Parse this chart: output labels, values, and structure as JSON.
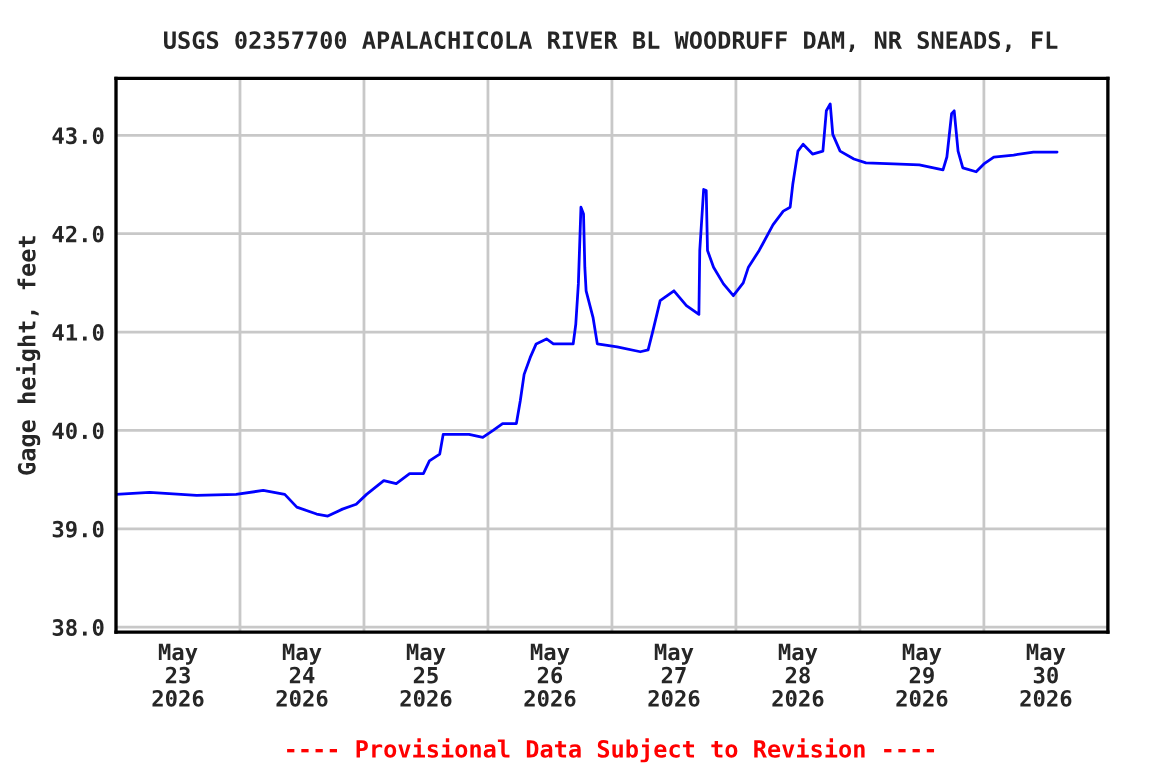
{
  "chart_data": {
    "type": "line",
    "title": "USGS 02357700 APALACHICOLA RIVER BL WOODRUFF DAM, NR SNEADS, FL",
    "ylabel": "Gage height, feet",
    "x": [
      "2026-05-23T00:00",
      "2026-05-23T06:30",
      "2026-05-23T15:36",
      "2026-05-23T23:15",
      "2026-05-24T04:30",
      "2026-05-24T08:40",
      "2026-05-24T11:00",
      "2026-05-24T14:50",
      "2026-05-24T17:00",
      "2026-05-24T19:50",
      "2026-05-24T22:30",
      "2026-05-25T00:30",
      "2026-05-25T03:50",
      "2026-05-25T06:15",
      "2026-05-25T08:50",
      "2026-05-25T11:30",
      "2026-05-25T12:40",
      "2026-05-25T14:40",
      "2026-05-25T15:20",
      "2026-05-25T18:00",
      "2026-05-25T20:20",
      "2026-05-25T23:00",
      "2026-05-26T01:00",
      "2026-05-26T02:50",
      "2026-05-26T05:30",
      "2026-05-26T06:15",
      "2026-05-26T07:00",
      "2026-05-26T08:10",
      "2026-05-26T09:20",
      "2026-05-26T11:20",
      "2026-05-26T12:40",
      "2026-05-26T16:30",
      "2026-05-26T17:00",
      "2026-05-26T17:30",
      "2026-05-26T18:00",
      "2026-05-26T18:30",
      "2026-05-26T18:45",
      "2026-05-26T19:00",
      "2026-05-26T20:20",
      "2026-05-26T21:10",
      "2026-05-27T01:00",
      "2026-05-27T05:30",
      "2026-05-27T07:00",
      "2026-05-27T07:55",
      "2026-05-27T09:20",
      "2026-05-27T12:00",
      "2026-05-27T14:25",
      "2026-05-27T16:50",
      "2026-05-27T17:00",
      "2026-05-27T17:45",
      "2026-05-27T18:15",
      "2026-05-27T18:30",
      "2026-05-27T19:40",
      "2026-05-27T21:35",
      "2026-05-27T23:30",
      "2026-05-28T01:25",
      "2026-05-28T02:25",
      "2026-05-28T04:30",
      "2026-05-28T07:10",
      "2026-05-28T09:10",
      "2026-05-28T10:30",
      "2026-05-28T11:00",
      "2026-05-28T12:00",
      "2026-05-28T13:00",
      "2026-05-28T14:50",
      "2026-05-28T16:50",
      "2026-05-28T17:30",
      "2026-05-28T18:15",
      "2026-05-28T18:45",
      "2026-05-28T20:10",
      "2026-05-28T22:50",
      "2026-05-29T01:10",
      "2026-05-29T06:30",
      "2026-05-29T11:30",
      "2026-05-29T16:05",
      "2026-05-29T16:50",
      "2026-05-29T17:45",
      "2026-05-29T18:15",
      "2026-05-29T19:00",
      "2026-05-29T19:55",
      "2026-05-29T22:30",
      "2026-05-30T00:00",
      "2026-05-30T01:55",
      "2026-05-30T05:45",
      "2026-05-30T09:35",
      "2026-05-30T14:10"
    ],
    "series": [
      {
        "color": "#0000ff",
        "values": [
          39.35,
          39.37,
          39.34,
          39.35,
          39.39,
          39.35,
          39.22,
          39.15,
          39.13,
          39.2,
          39.25,
          39.35,
          39.49,
          39.46,
          39.56,
          39.56,
          39.69,
          39.76,
          39.96,
          39.96,
          39.96,
          39.93,
          40.0,
          40.07,
          40.07,
          40.3,
          40.57,
          40.74,
          40.88,
          40.93,
          40.88,
          40.88,
          41.08,
          41.49,
          42.27,
          42.2,
          41.66,
          41.42,
          41.15,
          40.88,
          40.85,
          40.8,
          40.82,
          41.01,
          41.32,
          41.42,
          41.27,
          41.18,
          41.83,
          42.45,
          42.44,
          41.83,
          41.66,
          41.49,
          41.37,
          41.5,
          41.66,
          41.83,
          42.09,
          42.23,
          42.27,
          42.5,
          42.84,
          42.91,
          42.81,
          42.84,
          43.25,
          43.32,
          43.01,
          42.84,
          42.76,
          42.72,
          42.71,
          42.7,
          42.65,
          42.78,
          43.22,
          43.25,
          42.84,
          42.67,
          42.63,
          42.71,
          42.78,
          42.8,
          42.83,
          42.83
        ]
      }
    ],
    "xlim": [
      "2026-05-23T00:00",
      "2026-05-31T00:00"
    ],
    "xticks": [
      {
        "value": "2026-05-23T12:00",
        "label": "May\n23\n2026"
      },
      {
        "value": "2026-05-24T12:00",
        "label": "May\n24\n2026"
      },
      {
        "value": "2026-05-25T12:00",
        "label": "May\n25\n2026"
      },
      {
        "value": "2026-05-26T12:00",
        "label": "May\n26\n2026"
      },
      {
        "value": "2026-05-27T12:00",
        "label": "May\n27\n2026"
      },
      {
        "value": "2026-05-28T12:00",
        "label": "May\n28\n2026"
      },
      {
        "value": "2026-05-29T12:00",
        "label": "May\n29\n2026"
      },
      {
        "value": "2026-05-30T12:00",
        "label": "May\n30\n2026"
      },
      {
        "value": "2026-05-24T00:00",
        "label": null
      },
      {
        "value": "2026-05-25T00:00",
        "label": null
      },
      {
        "value": "2026-05-26T00:00",
        "label": null
      },
      {
        "value": "2026-05-27T00:00",
        "label": null
      },
      {
        "value": "2026-05-28T00:00",
        "label": null
      },
      {
        "value": "2026-05-29T00:00",
        "label": null
      },
      {
        "value": "2026-05-30T00:00",
        "label": null
      }
    ],
    "ylim": [
      37.95,
      43.58
    ],
    "yticks": [
      {
        "value": 38,
        "label": "38.0"
      },
      {
        "value": 39,
        "label": "39.0"
      },
      {
        "value": 40,
        "label": "40.0"
      },
      {
        "value": 41,
        "label": "41.0"
      },
      {
        "value": 42,
        "label": "42.0"
      },
      {
        "value": 43,
        "label": "43.0"
      }
    ],
    "grid": true,
    "legend": false,
    "marker": "none",
    "line_style": "solid",
    "annotations": [
      "---- Provisional Data Subject to Revision ----"
    ]
  }
}
